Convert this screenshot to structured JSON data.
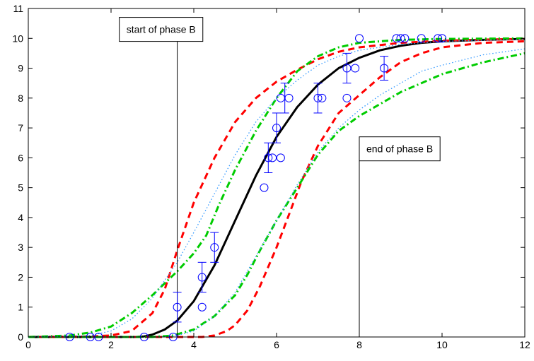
{
  "chart_data": {
    "type": "line",
    "title": "",
    "xlabel": "",
    "ylabel": "",
    "xlim": [
      0,
      12
    ],
    "ylim": [
      0,
      11
    ],
    "x_ticks": [
      0,
      2,
      4,
      6,
      8,
      10,
      12
    ],
    "y_ticks": [
      0,
      1,
      2,
      3,
      4,
      5,
      6,
      7,
      8,
      9,
      10,
      11
    ],
    "grid": false,
    "legend": "none",
    "series": [
      {
        "style": "solid",
        "color": "#000000",
        "points": [
          [
            0,
            0
          ],
          [
            2.6,
            0
          ],
          [
            2.8,
            0.02
          ],
          [
            3.0,
            0.08
          ],
          [
            3.3,
            0.25
          ],
          [
            3.6,
            0.55
          ],
          [
            4.0,
            1.2
          ],
          [
            4.5,
            2.4
          ],
          [
            5.0,
            3.9
          ],
          [
            5.5,
            5.4
          ],
          [
            6.0,
            6.7
          ],
          [
            6.5,
            7.7
          ],
          [
            7.0,
            8.45
          ],
          [
            7.5,
            9.0
          ],
          [
            8.0,
            9.35
          ],
          [
            8.5,
            9.6
          ],
          [
            9.0,
            9.75
          ],
          [
            9.5,
            9.85
          ],
          [
            10,
            9.9
          ],
          [
            11,
            9.95
          ],
          [
            12,
            9.98
          ]
        ]
      },
      {
        "style": "dashed",
        "color": "#ff0000",
        "points": [
          [
            0,
            0
          ],
          [
            1.5,
            0.02
          ],
          [
            2,
            0.05
          ],
          [
            2.5,
            0.2
          ],
          [
            3.0,
            0.8
          ],
          [
            3.3,
            1.6
          ],
          [
            3.6,
            2.9
          ],
          [
            4.0,
            4.5
          ],
          [
            4.5,
            6.0
          ],
          [
            5.0,
            7.2
          ],
          [
            5.5,
            8.0
          ],
          [
            6.0,
            8.55
          ],
          [
            6.5,
            8.95
          ],
          [
            7.0,
            9.3
          ],
          [
            7.5,
            9.55
          ],
          [
            8.0,
            9.7
          ],
          [
            9.0,
            9.85
          ],
          [
            10,
            9.92
          ],
          [
            11,
            9.96
          ],
          [
            12,
            9.98
          ]
        ]
      },
      {
        "style": "dashed",
        "color": "#ff0000",
        "points": [
          [
            0,
            0
          ],
          [
            4.2,
            0
          ],
          [
            4.5,
            0.05
          ],
          [
            4.8,
            0.2
          ],
          [
            5.0,
            0.4
          ],
          [
            5.3,
            0.9
          ],
          [
            5.6,
            1.7
          ],
          [
            6.0,
            3.0
          ],
          [
            6.3,
            4.1
          ],
          [
            6.6,
            5.2
          ],
          [
            7.0,
            6.4
          ],
          [
            7.5,
            7.5
          ],
          [
            8.0,
            8.1
          ],
          [
            8.5,
            8.7
          ],
          [
            9.0,
            9.2
          ],
          [
            9.5,
            9.5
          ],
          [
            10,
            9.7
          ],
          [
            11,
            9.85
          ],
          [
            12,
            9.9
          ]
        ]
      },
      {
        "style": "dash-dot",
        "color": "#00cc00",
        "points": [
          [
            0,
            0
          ],
          [
            1,
            0.05
          ],
          [
            1.5,
            0.15
          ],
          [
            2,
            0.35
          ],
          [
            2.5,
            0.8
          ],
          [
            3,
            1.4
          ],
          [
            3.6,
            2.2
          ],
          [
            4.0,
            2.8
          ],
          [
            4.3,
            3.4
          ],
          [
            4.6,
            4.4
          ],
          [
            5.0,
            5.6
          ],
          [
            5.5,
            6.9
          ],
          [
            6.0,
            8.0
          ],
          [
            6.5,
            8.9
          ],
          [
            7.0,
            9.4
          ],
          [
            7.5,
            9.7
          ],
          [
            8.0,
            9.85
          ],
          [
            9,
            9.95
          ],
          [
            10,
            9.98
          ],
          [
            12,
            10
          ]
        ]
      },
      {
        "style": "dash-dot",
        "color": "#00cc00",
        "points": [
          [
            0,
            0
          ],
          [
            3.0,
            0
          ],
          [
            3.5,
            0.05
          ],
          [
            4.0,
            0.25
          ],
          [
            4.5,
            0.7
          ],
          [
            5.0,
            1.4
          ],
          [
            5.3,
            2.1
          ],
          [
            5.6,
            2.9
          ],
          [
            6.0,
            3.9
          ],
          [
            6.5,
            5.0
          ],
          [
            7.0,
            6.1
          ],
          [
            7.5,
            6.9
          ],
          [
            8.0,
            7.4
          ],
          [
            8.5,
            7.8
          ],
          [
            9.0,
            8.2
          ],
          [
            9.5,
            8.5
          ],
          [
            10,
            8.8
          ],
          [
            10.5,
            9.0
          ],
          [
            11,
            9.2
          ],
          [
            12,
            9.5
          ]
        ]
      },
      {
        "style": "dotted",
        "color": "#3399ff",
        "points": [
          [
            0,
            0
          ],
          [
            1.5,
            0.05
          ],
          [
            2,
            0.2
          ],
          [
            2.5,
            0.6
          ],
          [
            3.0,
            1.3
          ],
          [
            3.6,
            2.5
          ],
          [
            4.0,
            3.5
          ],
          [
            4.5,
            4.8
          ],
          [
            5.0,
            6.1
          ],
          [
            5.5,
            7.2
          ],
          [
            6.0,
            8.0
          ],
          [
            6.5,
            8.6
          ],
          [
            7.0,
            9.1
          ],
          [
            7.5,
            9.4
          ],
          [
            8.0,
            9.6
          ],
          [
            9,
            9.8
          ],
          [
            10,
            9.9
          ],
          [
            12,
            9.97
          ]
        ]
      },
      {
        "style": "dotted",
        "color": "#3399ff",
        "points": [
          [
            0,
            0
          ],
          [
            3.2,
            0
          ],
          [
            3.6,
            0.05
          ],
          [
            4.0,
            0.2
          ],
          [
            4.5,
            0.7
          ],
          [
            5.0,
            1.5
          ],
          [
            5.5,
            2.7
          ],
          [
            6.0,
            3.9
          ],
          [
            6.5,
            5.1
          ],
          [
            7.0,
            6.2
          ],
          [
            7.5,
            7.0
          ],
          [
            8.0,
            7.6
          ],
          [
            8.5,
            8.1
          ],
          [
            9.0,
            8.5
          ],
          [
            9.5,
            8.9
          ],
          [
            10,
            9.1
          ],
          [
            11,
            9.45
          ],
          [
            12,
            9.65
          ]
        ]
      }
    ],
    "observations": {
      "marker": "circle",
      "color": "#0000ff",
      "points": [
        [
          1.0,
          0
        ],
        [
          1.5,
          0
        ],
        [
          1.7,
          0
        ],
        [
          2.8,
          0
        ],
        [
          3.5,
          0
        ],
        [
          3.6,
          1
        ],
        [
          4.2,
          1
        ],
        [
          4.2,
          2
        ],
        [
          4.5,
          3
        ],
        [
          5.7,
          5
        ],
        [
          5.8,
          6
        ],
        [
          5.9,
          6
        ],
        [
          6.0,
          7
        ],
        [
          6.1,
          6
        ],
        [
          6.1,
          8
        ],
        [
          6.3,
          8
        ],
        [
          7.0,
          8
        ],
        [
          7.1,
          8
        ],
        [
          7.7,
          8
        ],
        [
          7.7,
          9
        ],
        [
          7.9,
          9
        ],
        [
          8.0,
          10
        ],
        [
          8.6,
          9
        ],
        [
          8.9,
          10
        ],
        [
          9.0,
          10
        ],
        [
          9.1,
          10
        ],
        [
          9.5,
          10
        ],
        [
          9.9,
          10
        ],
        [
          10.0,
          10
        ]
      ],
      "error_bars": [
        [
          3.6,
          1,
          0.5
        ],
        [
          4.2,
          2,
          0.5
        ],
        [
          4.5,
          3,
          0.5
        ],
        [
          5.8,
          6,
          0.5
        ],
        [
          6.0,
          7,
          0.5
        ],
        [
          6.2,
          8,
          0.5
        ],
        [
          7.0,
          8,
          0.5
        ],
        [
          7.7,
          9,
          0.5
        ],
        [
          8.6,
          9,
          0.4
        ]
      ]
    },
    "annotations": [
      {
        "id": "start",
        "text": "start of phase B",
        "x": 3.6,
        "label_x": 2.2,
        "label_y": 10.3
      },
      {
        "id": "end",
        "text": "end of phase B",
        "x": 8.0,
        "label_x": 8.0,
        "label_y": 6.3
      }
    ]
  }
}
